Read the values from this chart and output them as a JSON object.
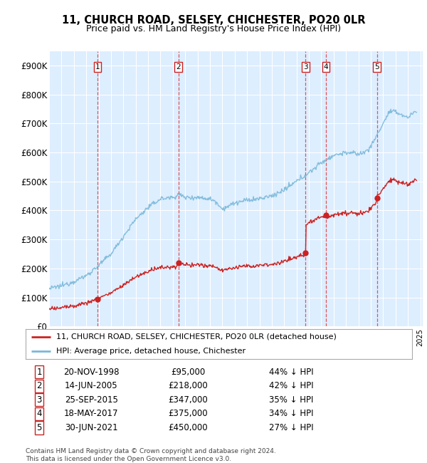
{
  "title": "11, CHURCH ROAD, SELSEY, CHICHESTER, PO20 0LR",
  "subtitle": "Price paid vs. HM Land Registry's House Price Index (HPI)",
  "ylim": [
    0,
    950000
  ],
  "yticks": [
    0,
    100000,
    200000,
    300000,
    400000,
    500000,
    600000,
    700000,
    800000,
    900000
  ],
  "ytick_labels": [
    "£0",
    "£100K",
    "£200K",
    "£300K",
    "£400K",
    "£500K",
    "£600K",
    "£700K",
    "£800K",
    "£900K"
  ],
  "hpi_color": "#7ab8d9",
  "price_color": "#cc2222",
  "bg_color": "#ddeeff",
  "transactions": [
    {
      "num": 1,
      "date_label": "20-NOV-1998",
      "date_x": 1998.9,
      "price": 95000,
      "pct": "44%",
      "vline_x": 1998.9
    },
    {
      "num": 2,
      "date_label": "14-JUN-2005",
      "date_x": 2005.45,
      "price": 218000,
      "pct": "42%",
      "vline_x": 2005.45
    },
    {
      "num": 3,
      "date_label": "25-SEP-2015",
      "date_x": 2015.73,
      "price": 347000,
      "pct": "35%",
      "vline_x": 2015.73
    },
    {
      "num": 4,
      "date_label": "18-MAY-2017",
      "date_x": 2017.38,
      "price": 375000,
      "pct": "34%",
      "vline_x": 2017.38
    },
    {
      "num": 5,
      "date_label": "30-JUN-2021",
      "date_x": 2021.5,
      "price": 450000,
      "pct": "27%",
      "vline_x": 2021.5
    }
  ],
  "legend_line1": "11, CHURCH ROAD, SELSEY, CHICHESTER, PO20 0LR (detached house)",
  "legend_line2": "HPI: Average price, detached house, Chichester",
  "footer": "Contains HM Land Registry data © Crown copyright and database right 2024.\nThis data is licensed under the Open Government Licence v3.0.",
  "xlim_start": 1995.0,
  "xlim_end": 2025.2
}
